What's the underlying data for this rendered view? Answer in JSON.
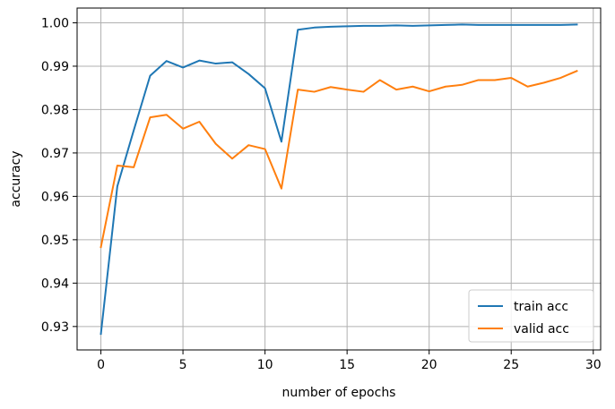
{
  "chart_data": {
    "type": "line",
    "title": "",
    "xlabel": "number of epochs",
    "ylabel": "accuracy",
    "xlim": [
      -1.45,
      30.45
    ],
    "ylim": [
      0.9246,
      1.0034
    ],
    "xticks": [
      0,
      5,
      10,
      15,
      20,
      25,
      30
    ],
    "xtick_labels": [
      "0",
      "5",
      "10",
      "15",
      "20",
      "25",
      "30"
    ],
    "yticks": [
      0.93,
      0.94,
      0.95,
      0.96,
      0.97,
      0.98,
      0.99,
      1.0
    ],
    "ytick_labels": [
      "0.93",
      "0.94",
      "0.95",
      "0.96",
      "0.97",
      "0.98",
      "0.99",
      "1.00"
    ],
    "grid": true,
    "legend_position": "lower right",
    "x": [
      0,
      1,
      2,
      3,
      4,
      5,
      6,
      7,
      8,
      9,
      10,
      11,
      12,
      13,
      14,
      15,
      16,
      17,
      18,
      19,
      20,
      21,
      22,
      23,
      24,
      25,
      26,
      27,
      28,
      29
    ],
    "series": [
      {
        "name": "train acc",
        "color": "#1f77b4",
        "values": [
          0.9283,
          0.9623,
          0.9752,
          0.9878,
          0.9912,
          0.9897,
          0.9913,
          0.9906,
          0.9909,
          0.9882,
          0.9849,
          0.9726,
          0.9984,
          0.9989,
          0.9991,
          0.9992,
          0.9993,
          0.9993,
          0.9994,
          0.9993,
          0.9994,
          0.9995,
          0.9996,
          0.9995,
          0.9995,
          0.9995,
          0.9995,
          0.9995,
          0.9995,
          0.9996
        ]
      },
      {
        "name": "valid acc",
        "color": "#ff7f0e",
        "values": [
          0.9483,
          0.9671,
          0.9667,
          0.9782,
          0.9788,
          0.9756,
          0.9772,
          0.9721,
          0.9687,
          0.9718,
          0.9709,
          0.9618,
          0.9846,
          0.9841,
          0.9852,
          0.9846,
          0.9841,
          0.9868,
          0.9846,
          0.9853,
          0.9842,
          0.9853,
          0.9857,
          0.9868,
          0.9868,
          0.9873,
          0.9853,
          0.9862,
          0.9873,
          0.9889
        ]
      }
    ]
  }
}
